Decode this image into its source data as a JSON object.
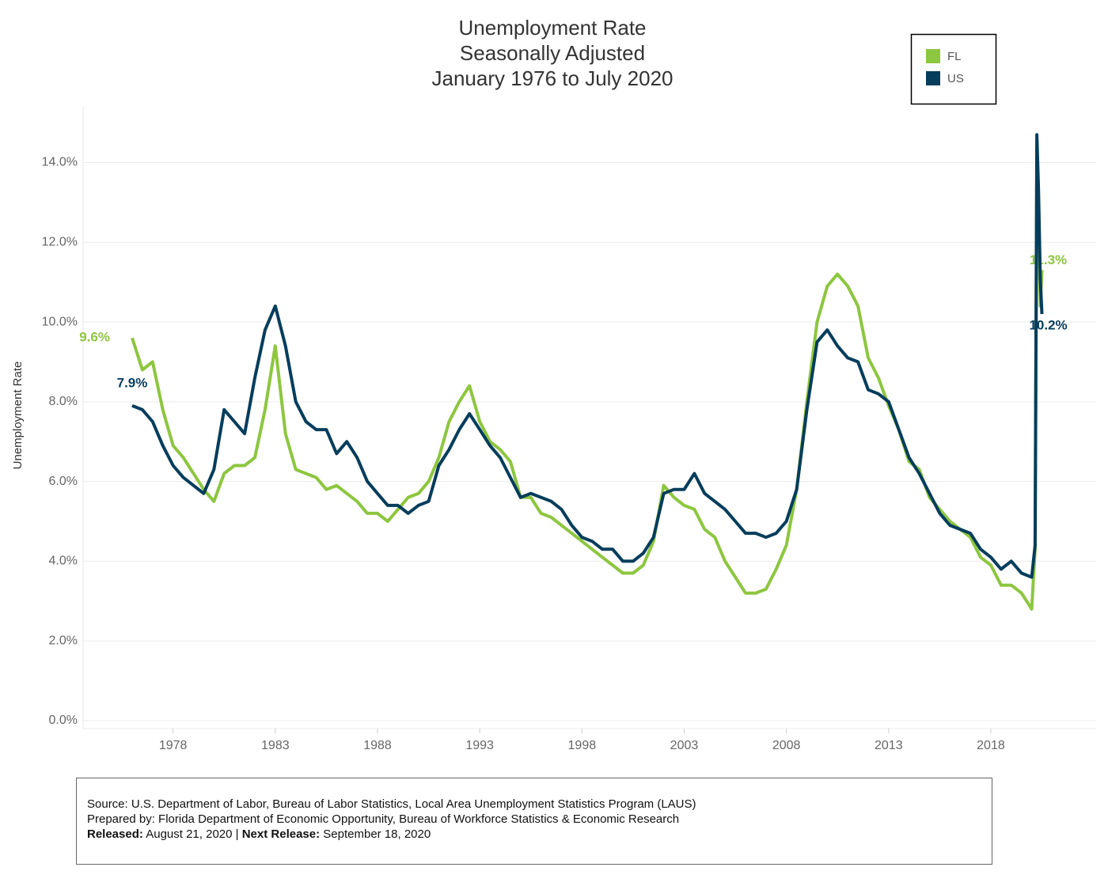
{
  "chart_data": {
    "type": "line",
    "title": [
      "Unemployment Rate",
      "Seasonally Adjusted",
      "January 1976 to July 2020"
    ],
    "y_label": "Unemployment Rate",
    "x": [
      1976,
      1976.5,
      1977,
      1977.5,
      1978,
      1978.5,
      1979,
      1979.5,
      1980,
      1980.5,
      1981,
      1981.5,
      1982,
      1982.5,
      1983,
      1983.5,
      1984,
      1984.5,
      1985,
      1985.5,
      1986,
      1986.5,
      1987,
      1987.5,
      1988,
      1988.5,
      1989,
      1989.5,
      1990,
      1990.5,
      1991,
      1991.5,
      1992,
      1992.5,
      1993,
      1993.5,
      1994,
      1994.5,
      1995,
      1995.5,
      1996,
      1996.5,
      1997,
      1997.5,
      1998,
      1998.5,
      1999,
      1999.5,
      2000,
      2000.5,
      2001,
      2001.5,
      2002,
      2002.5,
      2003,
      2003.5,
      2004,
      2004.5,
      2005,
      2005.5,
      2006,
      2006.5,
      2007,
      2007.5,
      2008,
      2008.5,
      2009,
      2009.5,
      2010,
      2010.5,
      2011,
      2011.5,
      2012,
      2012.5,
      2013,
      2013.5,
      2014,
      2014.5,
      2015,
      2015.5,
      2016,
      2016.5,
      2017,
      2017.5,
      2018,
      2018.5,
      2019,
      2019.5,
      2020,
      2020.167,
      2020.25,
      2020.333,
      2020.417,
      2020.5
    ],
    "series": [
      {
        "name": "FL",
        "color": "#8dc63f",
        "first_label": "9.6%",
        "last_label": "11.3%",
        "values": [
          9.6,
          8.8,
          9.0,
          7.8,
          6.9,
          6.6,
          6.2,
          5.8,
          5.5,
          6.2,
          6.4,
          6.4,
          6.6,
          7.8,
          9.4,
          7.2,
          6.3,
          6.2,
          6.1,
          5.8,
          5.9,
          5.7,
          5.5,
          5.2,
          5.2,
          5.0,
          5.3,
          5.6,
          5.7,
          6.0,
          6.6,
          7.5,
          8.0,
          8.4,
          7.5,
          7.0,
          6.8,
          6.5,
          5.6,
          5.6,
          5.2,
          5.1,
          4.9,
          4.7,
          4.5,
          4.3,
          4.1,
          3.9,
          3.7,
          3.7,
          3.9,
          4.5,
          5.9,
          5.6,
          5.4,
          5.3,
          4.8,
          4.6,
          4.0,
          3.6,
          3.2,
          3.2,
          3.3,
          3.8,
          4.4,
          5.8,
          8.0,
          10.0,
          10.9,
          11.2,
          10.9,
          10.4,
          9.1,
          8.6,
          7.9,
          7.3,
          6.5,
          6.3,
          5.6,
          5.3,
          5.0,
          4.8,
          4.6,
          4.1,
          3.9,
          3.4,
          3.4,
          3.2,
          2.8,
          4.3,
          13.8,
          13.0,
          10.4,
          11.3
        ]
      },
      {
        "name": "US",
        "color": "#063d5c",
        "first_label": "7.9%",
        "last_label": "10.2%",
        "values": [
          7.9,
          7.8,
          7.5,
          6.9,
          6.4,
          6.1,
          5.9,
          5.7,
          6.3,
          7.8,
          7.5,
          7.2,
          8.6,
          9.8,
          10.4,
          9.4,
          8.0,
          7.5,
          7.3,
          7.3,
          6.7,
          7.0,
          6.6,
          6.0,
          5.7,
          5.4,
          5.4,
          5.2,
          5.4,
          5.5,
          6.4,
          6.8,
          7.3,
          7.7,
          7.3,
          6.9,
          6.6,
          6.1,
          5.6,
          5.7,
          5.6,
          5.5,
          5.3,
          4.9,
          4.6,
          4.5,
          4.3,
          4.3,
          4.0,
          4.0,
          4.2,
          4.6,
          5.7,
          5.8,
          5.8,
          6.2,
          5.7,
          5.5,
          5.3,
          5.0,
          4.7,
          4.7,
          4.6,
          4.7,
          5.0,
          5.8,
          7.8,
          9.5,
          9.8,
          9.4,
          9.1,
          9.0,
          8.3,
          8.2,
          8.0,
          7.3,
          6.6,
          6.2,
          5.7,
          5.2,
          4.9,
          4.8,
          4.7,
          4.3,
          4.1,
          3.8,
          4.0,
          3.7,
          3.6,
          4.4,
          14.7,
          13.3,
          11.1,
          10.2
        ]
      }
    ],
    "xlim": [
      1973.6,
      2023.15
    ],
    "xticks": [
      1978,
      1983,
      1988,
      1993,
      1998,
      2003,
      2008,
      2013,
      2018
    ],
    "ylim": [
      0,
      15.2
    ],
    "yticks": [
      {
        "value": 0,
        "label": "0.0%"
      },
      {
        "value": 2,
        "label": "2.0%"
      },
      {
        "value": 4,
        "label": "4.0%"
      },
      {
        "value": 6,
        "label": "6.0%"
      },
      {
        "value": 8,
        "label": "8.0%"
      },
      {
        "value": 10,
        "label": "10.0%"
      },
      {
        "value": 12,
        "label": "12.0%"
      },
      {
        "value": 14,
        "label": "14.0%"
      }
    ],
    "grid": true
  },
  "footer": {
    "source": "Source: U.S. Department of Labor, Bureau of Labor Statistics, Local Area Unemployment Statistics Program (LAUS)",
    "prepared": "Prepared by: Florida Department of Economic Opportunity, Bureau of Workforce Statistics & Economic Research",
    "released_label": "Released:",
    "released": "August 21, 2020 |",
    "next_label": "Next Release:",
    "next": "September 18, 2020"
  }
}
